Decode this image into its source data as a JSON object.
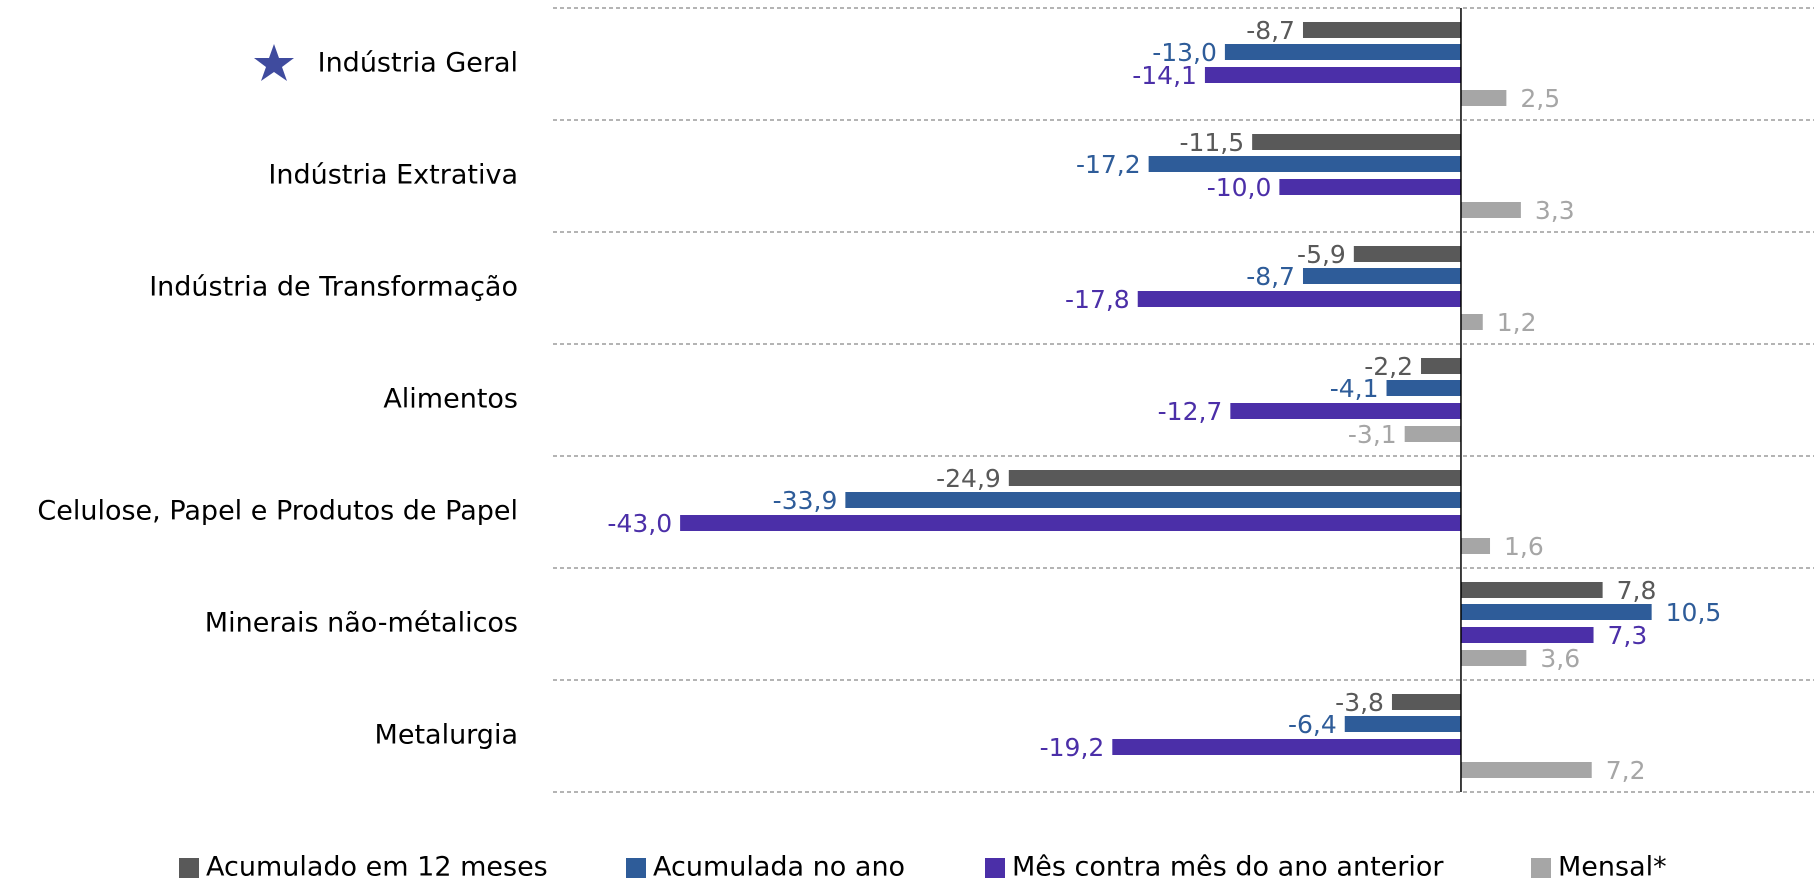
{
  "chart_data": {
    "type": "barh",
    "categories": [
      "Indústria Geral",
      "Indústria Extrativa",
      "Indústria de Transformação",
      "Alimentos",
      "Celulose, Papel e Produtos de Papel",
      "Minerais não-métalicos",
      "Metalurgia"
    ],
    "series": [
      {
        "name": "Acumulado em 12 meses",
        "color": "#595959",
        "values": [
          -8.7,
          -11.5,
          -5.9,
          -2.2,
          -24.9,
          7.8,
          -3.8
        ],
        "value_labels": [
          "-8,7",
          "-11,5",
          "-5,9",
          "-2,2",
          "-24,9",
          "7,8",
          "-3,8"
        ]
      },
      {
        "name": "Acumulada no ano",
        "color": "#2e5c99",
        "values": [
          -13.0,
          -17.2,
          -8.7,
          -4.1,
          -33.9,
          10.5,
          -6.4
        ],
        "value_labels": [
          "-13,0",
          "-17,2",
          "-8,7",
          "-4,1",
          "-33,9",
          "10,5",
          "-6,4"
        ]
      },
      {
        "name": "Mês contra mês do ano anterior",
        "color": "#4b2fa8",
        "values": [
          -14.1,
          -10.0,
          -17.8,
          -12.7,
          -43.0,
          7.3,
          -19.2
        ],
        "value_labels": [
          "-14,1",
          "-10,0",
          "-17,8",
          "-12,7",
          "-43,0",
          "7,3",
          "-19,2"
        ]
      },
      {
        "name": "Mensal*",
        "color": "#a6a6a6",
        "values": [
          2.5,
          3.3,
          1.2,
          -3.1,
          1.6,
          3.6,
          7.2
        ],
        "value_labels": [
          "2,5",
          "3,3",
          "1,2",
          "-3,1",
          "1,6",
          "3,6",
          "7,2"
        ]
      }
    ],
    "xlim": [
      -50,
      19
    ],
    "grid": true
  }
}
